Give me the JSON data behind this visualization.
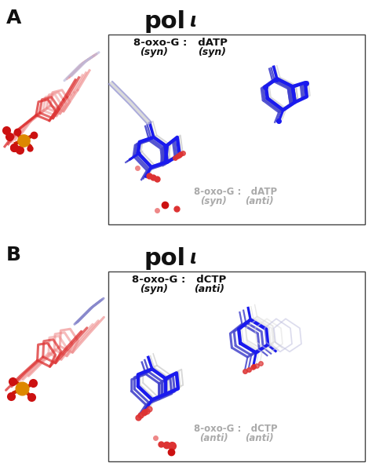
{
  "background_color": "#ffffff",
  "text_color": "#111111",
  "gray_text_color": "#aaaaaa",
  "blue_dark": "#1a1aee",
  "blue_mid": "#4444cc",
  "blue_light": "#8888cc",
  "blue_pale": "#bbbbdd",
  "gray_struct": "#cccccc",
  "gray_light": "#dddddd",
  "red_dark": "#cc1111",
  "red_mid": "#dd3333",
  "red_pale": "#ee8888",
  "orange": "#dd8800",
  "red_oxy": "#cc2200",
  "label_A": "A",
  "label_B": "B",
  "title": "pol",
  "title_iota": "ι",
  "panel_A": {
    "box_top_line1": "8-oxo-G :   dATP",
    "box_top_syn1": "(syn)",
    "box_top_syn2": "(syn)",
    "box_bot_line1": "8-oxo-G :   dATP",
    "box_bot_it1": "(syn)",
    "box_bot_it2": "(anti)"
  },
  "panel_B": {
    "box_top_line1": "8-oxo-G :   dCTP",
    "box_top_it1": "(syn)",
    "box_top_it2": "(anti)",
    "box_bot_line1": "8-oxo-G :   dCTP",
    "box_bot_it1": "(anti)",
    "box_bot_it2": "(anti)"
  },
  "figure_width": 4.74,
  "figure_height": 5.99,
  "dpi": 100
}
